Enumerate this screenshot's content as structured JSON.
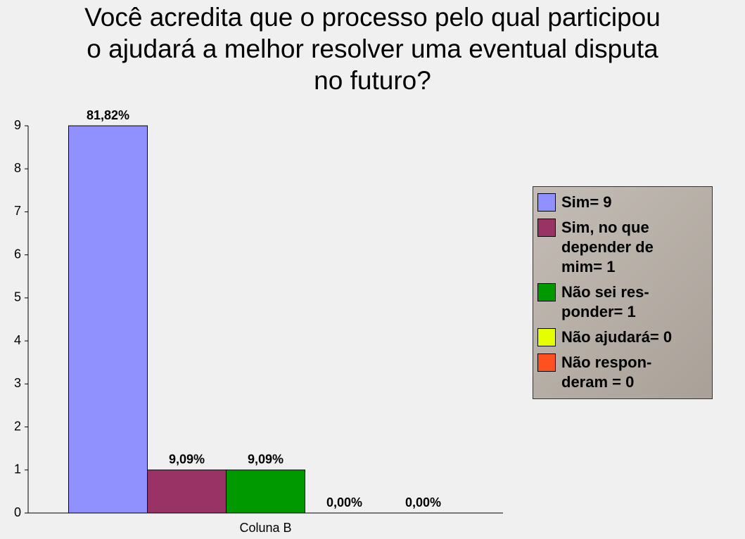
{
  "chart_data": {
    "type": "bar",
    "title": "Você acredita que o processo pelo qual participou\no ajudará a melhor resolver uma eventual disputa\nno futuro?",
    "categories": [
      "Coluna B"
    ],
    "series": [
      {
        "name": "Sim= 9",
        "color": "#9090ff",
        "values": [
          9
        ],
        "value_labels": [
          "81,82%"
        ]
      },
      {
        "name": "Sim, no que\ndepender de\nmim= 1",
        "color": "#993366",
        "values": [
          1
        ],
        "value_labels": [
          "9,09%"
        ]
      },
      {
        "name": "Não sei res-\nponder= 1",
        "color": "#009900",
        "values": [
          1
        ],
        "value_labels": [
          "9,09%"
        ]
      },
      {
        "name": "Não ajudará= 0",
        "color": "#e6ff00",
        "values": [
          0
        ],
        "value_labels": [
          "0,00%"
        ]
      },
      {
        "name": "Não respon-\nderam = 0",
        "color": "#ff5020",
        "values": [
          0
        ],
        "value_labels": [
          "0,00%"
        ]
      }
    ],
    "ylim": [
      0,
      9
    ],
    "yticks": [
      0,
      1,
      2,
      3,
      4,
      5,
      6,
      7,
      8,
      9
    ],
    "legend": "right"
  }
}
